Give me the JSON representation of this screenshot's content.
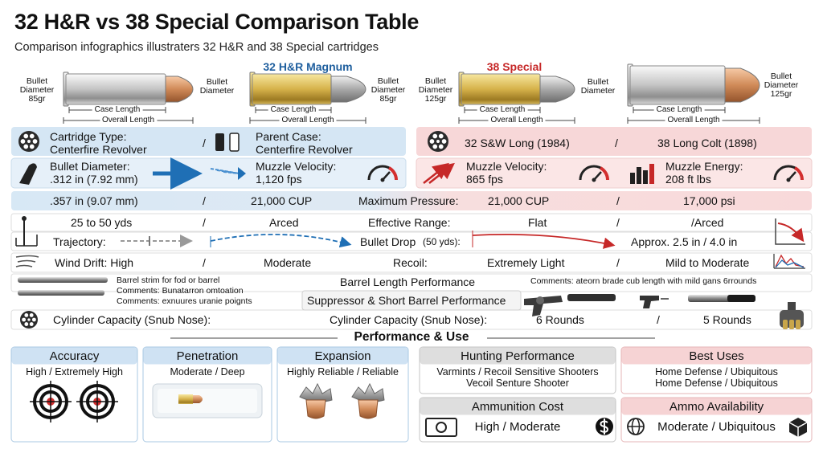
{
  "header": {
    "title": "32 H&R vs 38 Special Comparison Table",
    "subtitle": "Comparison infographics illustraters 32 H&R and 38 Special cartridges"
  },
  "cartridges": [
    {
      "left_label": "Bullet Diameter 85gr",
      "right_label": "Bullet Diameter",
      "case_length": "Case Length",
      "overall_length": "Overall Length"
    },
    {
      "name": "32 H&R Magnum",
      "right_label": "Bullet Diameter 85gr",
      "case_length": "Case Length",
      "overall_length": "Overall Length"
    },
    {
      "name": "38 Special",
      "left_label": "Bullet Diameter 125gr",
      "right_label": "Bullet Diameter",
      "case_length": "Case Length",
      "overall_length": "Overall Length"
    },
    {
      "right_label": "Bullet Diameter 125gr",
      "case_length": "Case Length",
      "overall_length": "Overall Length"
    }
  ],
  "specs": {
    "cartridge_type": {
      "label": "Cartridge Type:",
      "value": "Centerfire Revolver",
      "separator": "/",
      "parent_label": "Parent Case:",
      "parent_value": "Centerfire Revolver",
      "parent_32": "32 S&W Long (1984)",
      "separator_2": "/",
      "parent_38": "38 Long Colt (1898)"
    },
    "ballistics": {
      "diameter_label": "Bullet Diameter:",
      "diameter_32": ".312 in (7.92 mm)",
      "velocity_label": "Muzzle Velocity:",
      "velocity_32": "1,120 fps",
      "velocity_label_2": "Muzzle Velocity:",
      "velocity_38": "865 fps",
      "energy_label": "Muzzle Energy:",
      "energy_38": "208 ft lbs"
    },
    "pressure": {
      "diameter_38": ".357 in (9.07 mm)",
      "separator": "/",
      "pressure_32": "21,000 CUP",
      "label": "Maximum Pressure:",
      "pressure_a": "21,000 CUP",
      "separator_2": "/",
      "pressure_b": "17,000 psi"
    },
    "range": {
      "value": "25 to 50 yds",
      "separator": "/",
      "arc": "Arced",
      "label": "Effective Range:",
      "flat": "Flat",
      "separator_2": "/",
      "arced": "/Arced"
    },
    "trajectory": {
      "label": "Trajectory:",
      "drop_label": "Bullet Drop",
      "drop_range": "(50 yds):",
      "drop": "Approx. 2.5 in / 4.0 in"
    },
    "wind_recoil": {
      "wind": "Wind Drift: High",
      "separator": "/",
      "wind_38": "Moderate",
      "recoil_label": "Recoil:",
      "recoil_32": "Extremely Light",
      "separator_2": "/",
      "recoil_38": "Mild to Moderate"
    },
    "barrel": {
      "note": "Barrel strim for fod or barrel",
      "comment_1": "Comments: Bunatarron omtoation",
      "comment_2": "Comments: exnuures uranie poignts",
      "label": "Barrel Length Performance",
      "comment_3": "Comments: ateorn brade cub length with mild gans 6rrounds"
    },
    "suppressor": {
      "label": "Suppressor & Short Barrel Performance"
    },
    "cylinder": {
      "label": "Cylinder Capacity (Snub Nose):",
      "label_2": "Cylinder Capacity (Snub Nose):",
      "rounds_32": "6 Rounds",
      "separator": "/",
      "rounds_38": "5 Rounds"
    }
  },
  "performance": {
    "title": "Performance & Use",
    "cards": [
      {
        "title": "Accuracy",
        "lines": [
          "High / Extremely High"
        ]
      },
      {
        "title": "Penetration",
        "lines": [
          "Moderate / Deep"
        ]
      },
      {
        "title": "Expansion",
        "lines": [
          "Highly Reliable / Reliable"
        ]
      },
      {
        "title": "Hunting Performance",
        "lines": [
          "Varmints / Recoil Sensitive Shooters",
          "Vecoil Senture Shooter"
        ]
      },
      {
        "title": "Best Uses",
        "lines": [
          "Home Defense / Ubiquitous",
          "Home Defense / Ubiquitous"
        ]
      },
      {
        "title": "Ammunition Cost",
        "lines": [
          "High / Moderate"
        ]
      },
      {
        "title": "Ammo Availability",
        "lines": [
          "Moderate / Ubiquitous"
        ]
      }
    ]
  }
}
